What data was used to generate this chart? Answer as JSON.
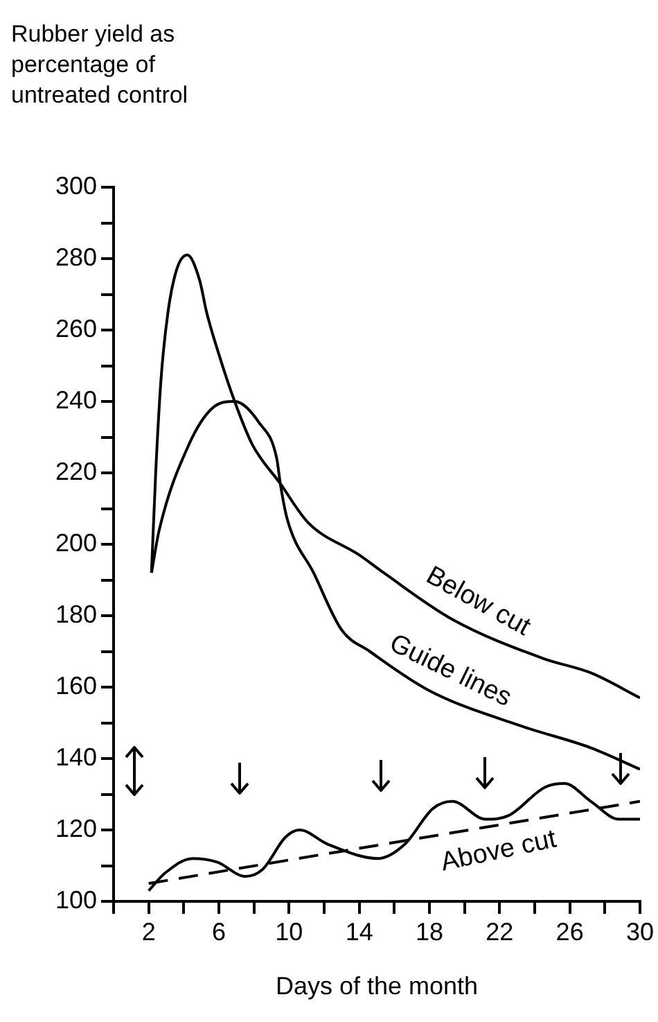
{
  "chart_data": {
    "type": "line",
    "ylabel": "Rubber yield as percentage of untreated control",
    "xlabel": "Days of the month",
    "xlim": [
      0,
      30
    ],
    "xticks": [
      {
        "value": 0,
        "label": null
      },
      2,
      {
        "value": 4,
        "label": null
      },
      6,
      {
        "value": 8,
        "label": null
      },
      10,
      {
        "value": 12,
        "label": null
      },
      14,
      {
        "value": 16,
        "label": null
      },
      18,
      {
        "value": 20,
        "label": null
      },
      22,
      {
        "value": 24,
        "label": null
      },
      26,
      {
        "value": 28,
        "label": null
      },
      30
    ],
    "ylim": [
      100,
      300
    ],
    "yticks": [
      100,
      {
        "value": 110,
        "label": null
      },
      120,
      {
        "value": 130,
        "label": null
      },
      140,
      {
        "value": 150,
        "label": null
      },
      160,
      {
        "value": 170,
        "label": null
      },
      180,
      {
        "value": 190,
        "label": null
      },
      200,
      {
        "value": 210,
        "label": null
      },
      220,
      {
        "value": 230,
        "label": null
      },
      240,
      {
        "value": 250,
        "label": null
      },
      260,
      {
        "value": 270,
        "label": null
      },
      280,
      {
        "value": 290,
        "label": null
      },
      300
    ],
    "series": [
      {
        "name": "Below cut",
        "color": "#000000",
        "x": [
          2.16,
          2.4,
          2.7,
          3.1,
          3.6,
          4.2,
          4.9,
          5.3,
          5.95,
          6.9,
          7.9,
          9.5,
          11.1,
          14,
          15.4,
          19.3,
          24.5,
          27.2,
          30
        ],
        "values": [
          192,
          220,
          246,
          265,
          277,
          281,
          274,
          265,
          254,
          240,
          228,
          217,
          206,
          197,
          192,
          179,
          168,
          164,
          157
        ]
      },
      {
        "name": "Guide lines",
        "color": "#000000",
        "x": [
          2.16,
          2.6,
          4.3,
          5.6,
          6.9,
          8.3,
          9.3,
          9.5,
          9.9,
          11.4,
          13,
          14.6,
          18,
          23.3,
          27.2,
          30
        ],
        "values": [
          192,
          204,
          228,
          238,
          240,
          234,
          224,
          217,
          207,
          192,
          176,
          170,
          159,
          149,
          143,
          137
        ]
      },
      {
        "name": "Above cut",
        "color": "#000000",
        "x": [
          2,
          2.95,
          4.5,
          5.9,
          7.5,
          8.5,
          9.8,
          10.6,
          12.2,
          15.1,
          16.6,
          18.2,
          19.3,
          21.2,
          22.5,
          24.6,
          25.7,
          27.2,
          28.8,
          30
        ],
        "values": [
          103,
          108,
          112,
          111,
          107,
          109,
          118,
          120,
          116,
          112,
          116,
          126,
          128,
          123,
          124,
          132,
          133,
          128,
          123,
          123
        ]
      },
      {
        "color": "#000000",
        "line_style": "dashed",
        "x": [
          2,
          30
        ],
        "values": [
          105,
          128
        ]
      }
    ]
  }
}
